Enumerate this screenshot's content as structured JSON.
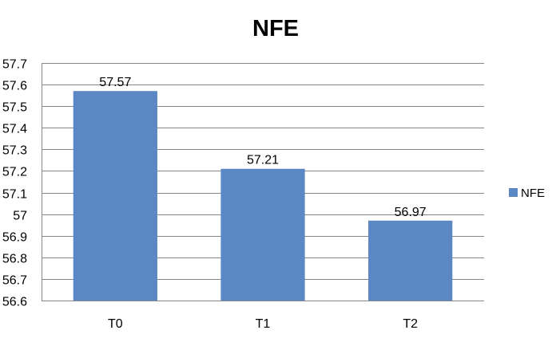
{
  "chart_data": {
    "type": "bar",
    "title": "NFE",
    "categories": [
      "T0",
      "T1",
      "T2"
    ],
    "series": [
      {
        "name": "NFE",
        "values": [
          57.57,
          57.21,
          56.97
        ],
        "color": "#5B88C4"
      }
    ],
    "value_labels": [
      "57.57",
      "57.21",
      "56.97"
    ],
    "ylim": [
      56.6,
      57.7
    ],
    "y_ticks": [
      56.6,
      56.7,
      56.8,
      56.9,
      57.0,
      57.1,
      57.2,
      57.3,
      57.4,
      57.5,
      57.6,
      57.7
    ],
    "y_tick_labels": [
      "56.6",
      "56.7",
      "56.8",
      "56.9",
      "57",
      "57.1",
      "57.2",
      "57.3",
      "57.4",
      "57.5",
      "57.6",
      "57.7"
    ],
    "grid": true,
    "legend": "right",
    "gridline_color": "#868686"
  }
}
